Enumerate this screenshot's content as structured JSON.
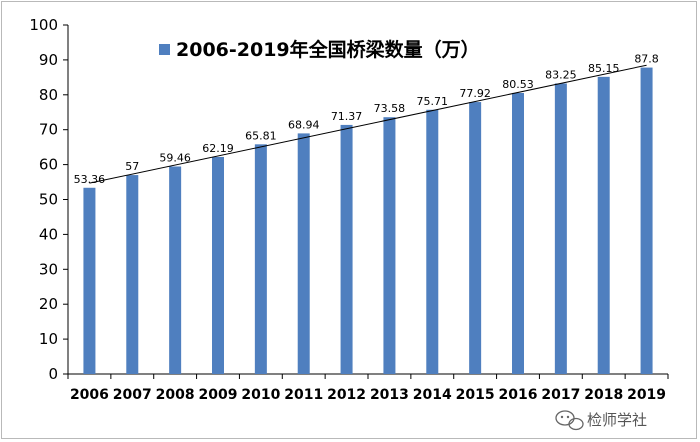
{
  "chart_data": {
    "type": "bar",
    "categories": [
      "2006",
      "2007",
      "2008",
      "2009",
      "2010",
      "2011",
      "2012",
      "2013",
      "2014",
      "2015",
      "2016",
      "2017",
      "2018",
      "2019"
    ],
    "series": [
      {
        "name": "2006-2019年全国桥梁数量（万）",
        "values": [
          53.36,
          57,
          59.46,
          62.19,
          65.81,
          68.94,
          71.37,
          73.58,
          75.71,
          77.92,
          80.53,
          83.25,
          85.15,
          87.8
        ],
        "labels": [
          "53.36",
          "57",
          "59.46",
          "62.19",
          "65.81",
          "68.94",
          "71.37",
          "73.58",
          "75.71",
          "77.92",
          "80.53",
          "83.25",
          "85.15",
          "87.8"
        ]
      }
    ],
    "ylim": [
      0,
      100
    ],
    "yticks": [
      0,
      10,
      20,
      30,
      40,
      50,
      60,
      70,
      80,
      90,
      100
    ],
    "trendline": true,
    "legend_position": "top-left",
    "bar_color": "#4f7fbf"
  },
  "watermark": {
    "text": "检师学社"
  }
}
